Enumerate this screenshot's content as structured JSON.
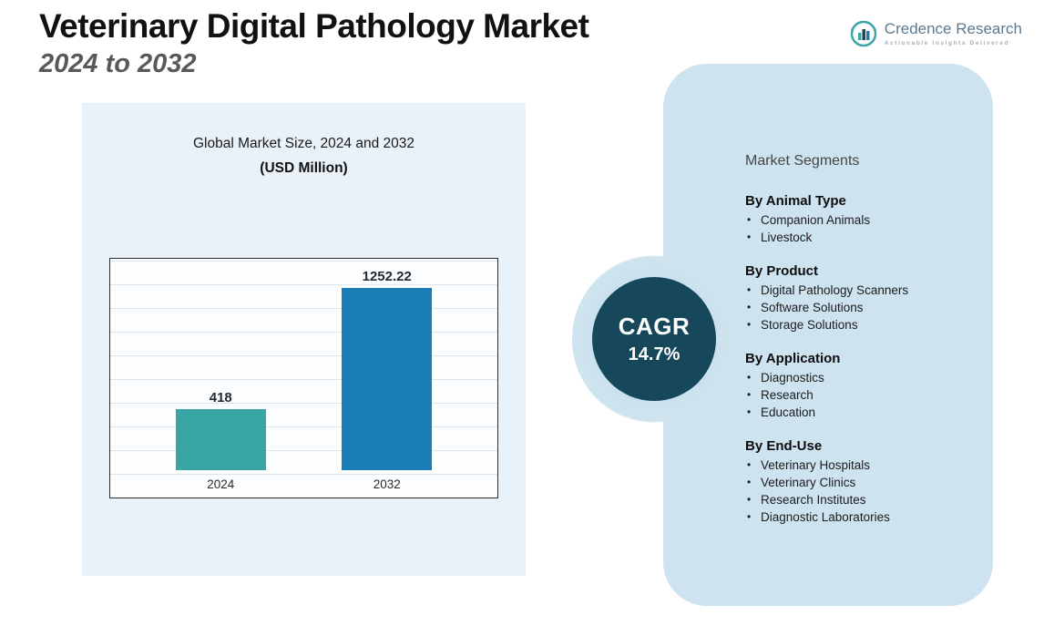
{
  "header": {
    "title": "Veterinary Digital Pathology Market",
    "subtitle": "2024 to 2032"
  },
  "logo": {
    "name": "Credence Research",
    "tagline": "Actionable Insights Delivered"
  },
  "chart_data": {
    "type": "bar",
    "title": "Global Market Size, 2024 and 2032",
    "subtitle": "(USD Million)",
    "categories": [
      "2024",
      "2032"
    ],
    "values": [
      418,
      1252.22
    ],
    "value_labels": [
      "418",
      "1252.22"
    ],
    "bar_colors": [
      "#3aa5a5",
      "#1a7db5"
    ],
    "ylabel": "",
    "xlabel": "",
    "ylim": [
      0,
      1400
    ],
    "grid": true,
    "legend": "none"
  },
  "cagr": {
    "label": "CAGR",
    "value": "14.7%"
  },
  "segments": {
    "title": "Market Segments",
    "groups": [
      {
        "heading": "By Animal Type",
        "items": [
          "Companion Animals",
          "Livestock"
        ]
      },
      {
        "heading": "By Product",
        "items": [
          "Digital Pathology Scanners",
          "Software Solutions",
          "Storage Solutions"
        ]
      },
      {
        "heading": "By Application",
        "items": [
          "Diagnostics",
          "Research",
          "Education"
        ]
      },
      {
        "heading": "By End-Use",
        "items": [
          "Veterinary Hospitals",
          "Veterinary Clinics",
          "Research Institutes",
          "Diagnostic Laboratories"
        ]
      }
    ]
  },
  "colors": {
    "panel_left": "#e9f2f9",
    "panel_right": "#cde3ef",
    "cagr_circle": "#17475a",
    "bar_2024": "#3aa5a5",
    "bar_2032": "#1a7db5",
    "accent_teal": "#3aa5a5",
    "logo_text": "#5c7a92"
  }
}
